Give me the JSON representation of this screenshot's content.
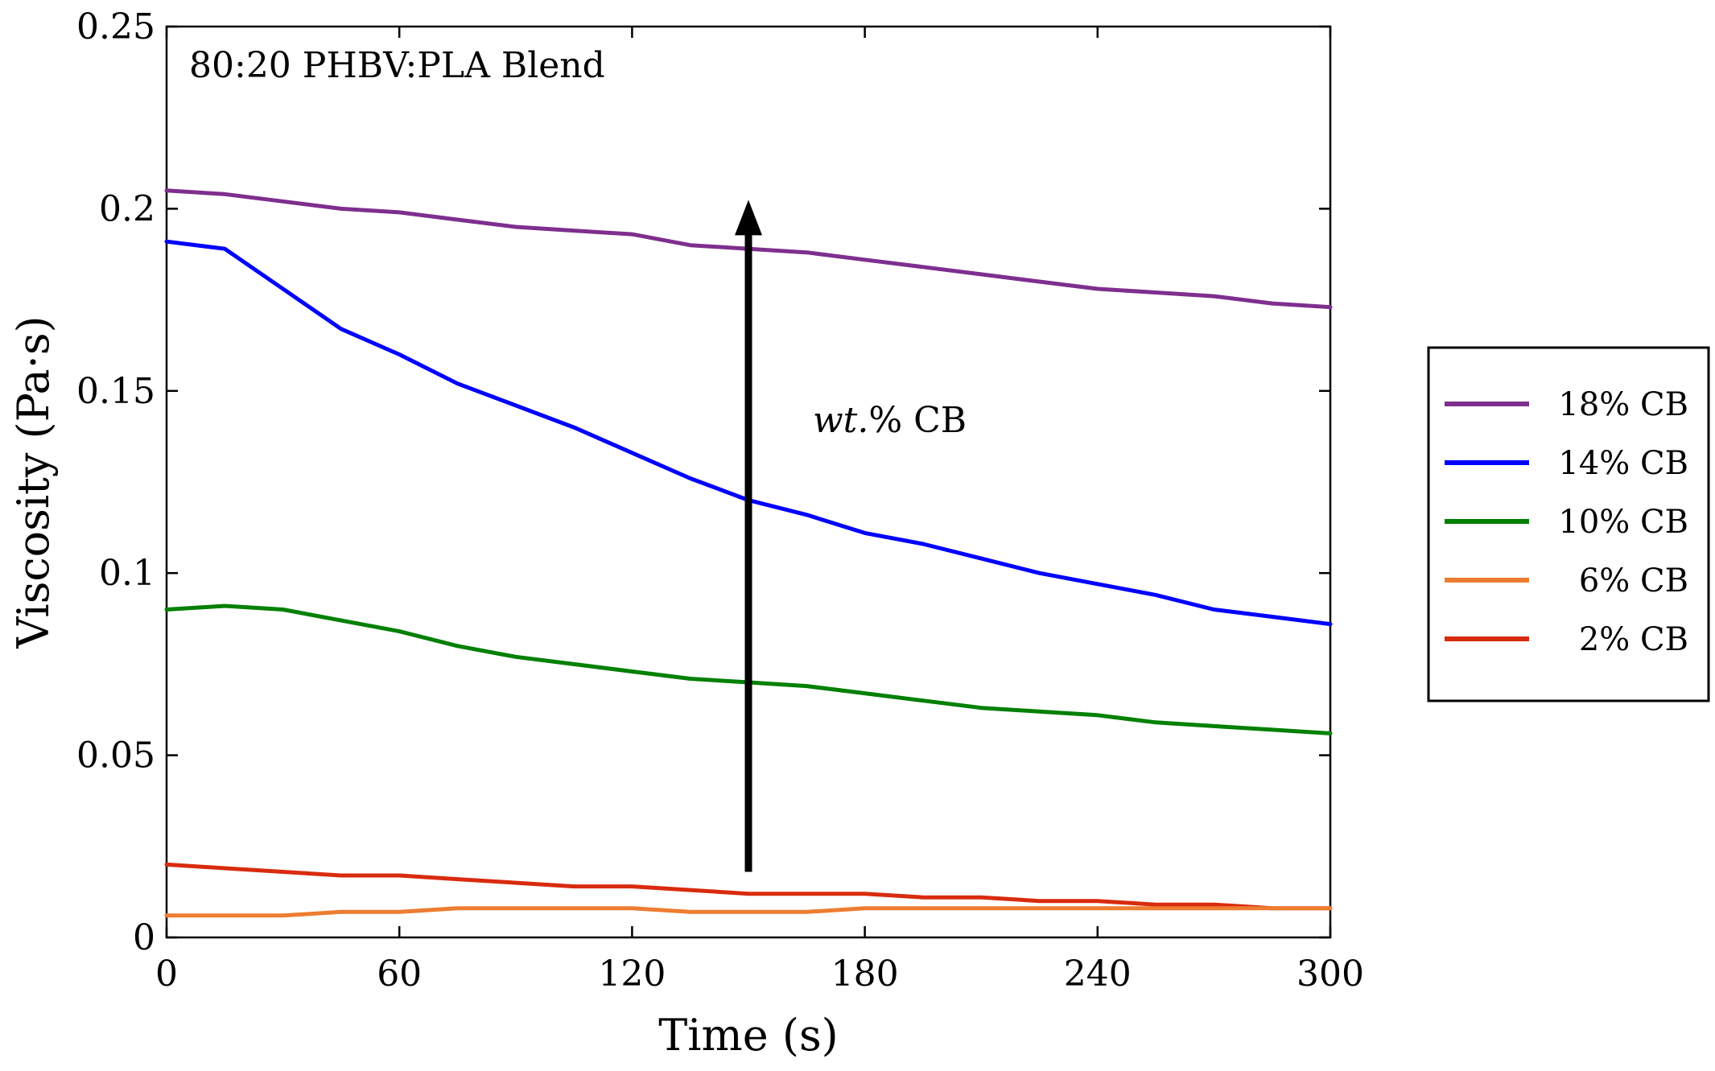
{
  "chart_data": {
    "type": "line",
    "title": "80:20 PHBV:PLA Blend",
    "xlabel": "Time (s)",
    "ylabel": "Viscosity (Pa·s)",
    "xlim": [
      0,
      300
    ],
    "ylim": [
      0,
      0.25
    ],
    "x_ticks": [
      0,
      60,
      120,
      180,
      240,
      300
    ],
    "x_tick_labels": [
      "0",
      "60",
      "120",
      "180",
      "240",
      "300"
    ],
    "y_ticks": [
      0,
      0.05,
      0.1,
      0.15,
      0.2,
      0.25
    ],
    "y_tick_labels": [
      "0",
      "0.05",
      "0.1",
      "0.15",
      "0.2",
      "0.25"
    ],
    "grid": false,
    "legend_position": "outside-right",
    "annotation": {
      "text_italic": "wt.",
      "text_rest": "% CB",
      "arrow_from": [
        150,
        0.018
      ],
      "arrow_to": [
        150,
        0.202
      ]
    },
    "series": [
      {
        "name": "18% CB",
        "color": "#7e2f8e",
        "x": [
          0,
          15,
          30,
          45,
          60,
          75,
          90,
          105,
          120,
          135,
          150,
          165,
          180,
          195,
          210,
          225,
          240,
          255,
          270,
          285,
          300
        ],
        "y": [
          0.205,
          0.204,
          0.202,
          0.2,
          0.199,
          0.197,
          0.195,
          0.194,
          0.193,
          0.19,
          0.189,
          0.188,
          0.186,
          0.184,
          0.182,
          0.18,
          0.178,
          0.177,
          0.176,
          0.174,
          0.173
        ]
      },
      {
        "name": "14% CB",
        "color": "#0000ff",
        "x": [
          0,
          15,
          30,
          45,
          60,
          75,
          90,
          105,
          120,
          135,
          150,
          165,
          180,
          195,
          210,
          225,
          240,
          255,
          270,
          285,
          300
        ],
        "y": [
          0.191,
          0.189,
          0.178,
          0.167,
          0.16,
          0.152,
          0.146,
          0.14,
          0.133,
          0.126,
          0.12,
          0.116,
          0.111,
          0.108,
          0.104,
          0.1,
          0.097,
          0.094,
          0.09,
          0.088,
          0.086
        ]
      },
      {
        "name": "10% CB",
        "color": "#008000",
        "x": [
          0,
          15,
          30,
          45,
          60,
          75,
          90,
          105,
          120,
          135,
          150,
          165,
          180,
          195,
          210,
          225,
          240,
          255,
          270,
          285,
          300
        ],
        "y": [
          0.09,
          0.091,
          0.09,
          0.087,
          0.084,
          0.08,
          0.077,
          0.075,
          0.073,
          0.071,
          0.07,
          0.069,
          0.067,
          0.065,
          0.063,
          0.062,
          0.061,
          0.059,
          0.058,
          0.057,
          0.056
        ]
      },
      {
        "name": "6% CB",
        "color": "#ed7d31",
        "x": [
          0,
          15,
          30,
          45,
          60,
          75,
          90,
          105,
          120,
          135,
          150,
          165,
          180,
          195,
          210,
          225,
          240,
          255,
          270,
          285,
          300
        ],
        "y": [
          0.006,
          0.006,
          0.006,
          0.007,
          0.007,
          0.008,
          0.008,
          0.008,
          0.008,
          0.007,
          0.007,
          0.007,
          0.008,
          0.008,
          0.008,
          0.008,
          0.008,
          0.008,
          0.008,
          0.008,
          0.008
        ]
      },
      {
        "name": "2% CB",
        "color": "#d92b0f",
        "x": [
          0,
          15,
          30,
          45,
          60,
          75,
          90,
          105,
          120,
          135,
          150,
          165,
          180,
          195,
          210,
          225,
          240,
          255,
          270,
          285,
          300
        ],
        "y": [
          0.02,
          0.019,
          0.018,
          0.017,
          0.017,
          0.016,
          0.015,
          0.014,
          0.014,
          0.013,
          0.012,
          0.012,
          0.012,
          0.011,
          0.011,
          0.01,
          0.01,
          0.009,
          0.009,
          0.008,
          0.008
        ]
      }
    ]
  }
}
